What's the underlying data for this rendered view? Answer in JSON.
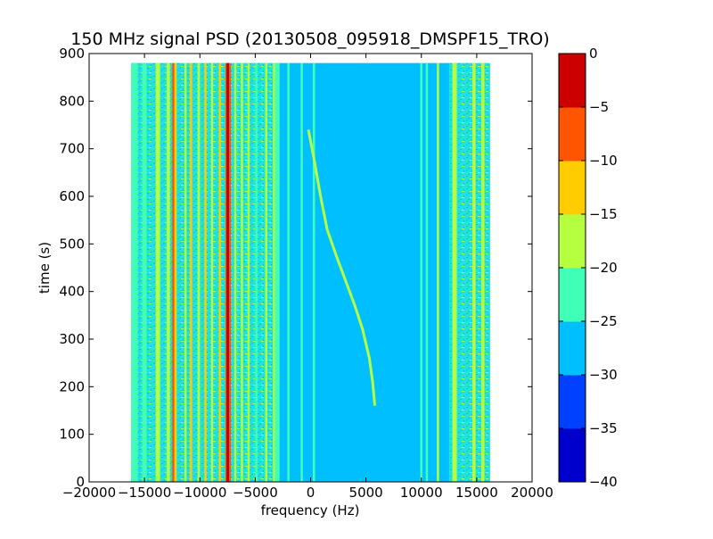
{
  "chart_data": {
    "type": "heatmap",
    "title": "150 MHz signal PSD (20130508_095918_DMSPF15_TRO)",
    "xlabel": "frequency (Hz)",
    "ylabel": "time (s)",
    "xlim": [
      -20000,
      20000
    ],
    "ylim": [
      0,
      900
    ],
    "xticks": [
      -20000,
      -15000,
      -10000,
      -5000,
      0,
      5000,
      10000,
      15000,
      20000
    ],
    "xtick_labels": [
      "−20000",
      "−15000",
      "−10000",
      "−5000",
      "0",
      "5000",
      "10000",
      "15000",
      "20000"
    ],
    "yticks": [
      0,
      100,
      200,
      300,
      400,
      500,
      600,
      700,
      800,
      900
    ],
    "ytick_labels": [
      "0",
      "100",
      "200",
      "300",
      "400",
      "500",
      "600",
      "700",
      "800",
      "900"
    ],
    "data_extent": {
      "x": [
        -16200,
        16200
      ],
      "y": [
        0,
        880
      ]
    },
    "background_level": -27.5,
    "colorbar": {
      "levels": [
        -40,
        -35,
        -30,
        -25,
        -20,
        -15,
        -10,
        -5,
        0
      ],
      "tick_labels": [
        "−40",
        "−35",
        "−30",
        "−25",
        "−20",
        "−15",
        "−10",
        "−5",
        "0"
      ],
      "colors": [
        "#0000cc",
        "#0040ff",
        "#00bfff",
        "#40ffb6",
        "#b6ff40",
        "#ffcc00",
        "#ff5500",
        "#cc0000"
      ]
    },
    "noisy_band_level": -22.5,
    "noisy_bands": [
      [
        -16200,
        -3200
      ],
      [
        12500,
        16200
      ]
    ],
    "bands": [
      {
        "x": [
          -16200,
          -15600
        ],
        "level": -22.5
      },
      {
        "x": [
          -15200,
          -14800
        ],
        "level": -22.5
      },
      {
        "x": [
          -14000,
          -13600
        ],
        "level": -17.5
      },
      {
        "x": [
          -13000,
          -12700
        ],
        "level": -17.5
      },
      {
        "x": [
          -12500,
          -12300
        ],
        "level": -7.5
      },
      {
        "x": [
          -12300,
          -12100
        ],
        "level": -12.5
      },
      {
        "x": [
          -11400,
          -11200
        ],
        "level": -17.5
      },
      {
        "x": [
          -10900,
          -10700
        ],
        "level": -12.5
      },
      {
        "x": [
          -10200,
          -10000
        ],
        "level": -17.5
      },
      {
        "x": [
          -9600,
          -9400
        ],
        "level": -12.5
      },
      {
        "x": [
          -9000,
          -8800
        ],
        "level": -17.5
      },
      {
        "x": [
          -8300,
          -8100
        ],
        "level": -12.5
      },
      {
        "x": [
          -7700,
          -7600
        ],
        "level": -7.5
      },
      {
        "x": [
          -7600,
          -7350
        ],
        "level": -2.5
      },
      {
        "x": [
          -7350,
          -7200
        ],
        "level": -7.5
      },
      {
        "x": [
          -6900,
          -6700
        ],
        "level": -17.5
      },
      {
        "x": [
          -6300,
          -6100
        ],
        "level": -17.5
      },
      {
        "x": [
          -5700,
          -5500
        ],
        "level": -17.5
      },
      {
        "x": [
          -5000,
          -4800
        ],
        "level": -22.5
      },
      {
        "x": [
          -4100,
          -3900
        ],
        "level": -17.5
      },
      {
        "x": [
          -3400,
          -3200
        ],
        "level": -17.5
      },
      {
        "x": [
          -3200,
          -2800
        ],
        "level": -22.5
      },
      {
        "x": [
          -2100,
          -1900
        ],
        "level": -22.5
      },
      {
        "x": [
          -900,
          -700
        ],
        "level": -22.5
      },
      {
        "x": [
          200,
          400
        ],
        "level": -22.5
      },
      {
        "x": [
          9900,
          10100
        ],
        "level": -22.5
      },
      {
        "x": [
          10400,
          10600
        ],
        "level": -22.5
      },
      {
        "x": [
          11400,
          11600
        ],
        "level": -17.5
      },
      {
        "x": [
          12800,
          13200
        ],
        "level": -17.5
      },
      {
        "x": [
          14600,
          14900
        ],
        "level": -17.5
      },
      {
        "x": [
          15400,
          15700
        ],
        "level": -17.5
      }
    ],
    "traces": [
      {
        "level": -17.5,
        "points": [
          [
            -200,
            740
          ],
          [
            300,
            680
          ],
          [
            900,
            600
          ],
          [
            1500,
            530
          ],
          [
            2400,
            470
          ],
          [
            3200,
            420
          ],
          [
            4000,
            370
          ],
          [
            4700,
            320
          ],
          [
            5300,
            260
          ],
          [
            5600,
            210
          ],
          [
            5800,
            160
          ]
        ]
      }
    ]
  }
}
